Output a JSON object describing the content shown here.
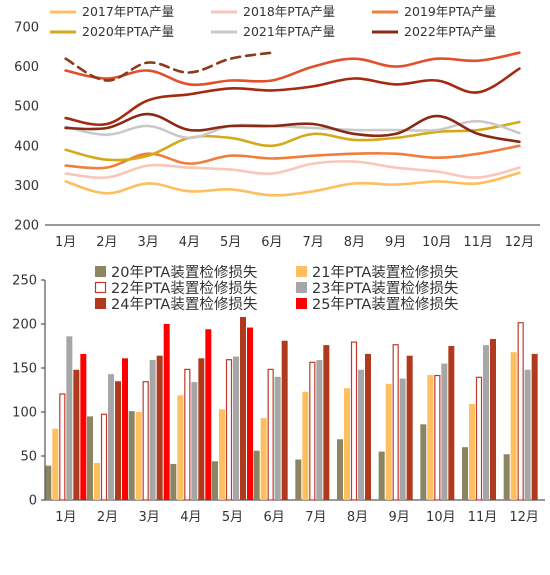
{
  "chart_data": [
    {
      "type": "line",
      "title": "",
      "xlabel": "",
      "ylabel": "",
      "ylim": [
        200,
        700
      ],
      "yticks": [
        200,
        300,
        400,
        500,
        600,
        700
      ],
      "categories": [
        "1月",
        "2月",
        "3月",
        "4月",
        "5月",
        "6月",
        "7月",
        "8月",
        "9月",
        "10月",
        "11月",
        "12月"
      ],
      "grid": false,
      "legend": "top",
      "series": [
        {
          "name": "2017年PTA产量",
          "color": "#FDBF5F",
          "dashed": false,
          "values": [
            310,
            280,
            305,
            285,
            290,
            275,
            285,
            305,
            302,
            310,
            305,
            332
          ]
        },
        {
          "name": "2018年PTA产量",
          "color": "#F9C6BA",
          "dashed": false,
          "values": [
            330,
            320,
            350,
            345,
            340,
            330,
            355,
            360,
            345,
            335,
            320,
            345
          ]
        },
        {
          "name": "2019年PTA产量",
          "color": "#F07E3C",
          "dashed": false,
          "values": [
            350,
            345,
            380,
            355,
            375,
            368,
            375,
            380,
            380,
            370,
            380,
            400
          ]
        },
        {
          "name": "2020年PTA产量",
          "color": "#D4AA1A",
          "dashed": false,
          "values": [
            390,
            365,
            375,
            420,
            420,
            400,
            430,
            415,
            420,
            435,
            440,
            460
          ]
        },
        {
          "name": "2021年PTA产量",
          "color": "#C9C9C9",
          "dashed": false,
          "values": [
            448,
            428,
            450,
            420,
            450,
            450,
            445,
            440,
            440,
            440,
            462,
            432
          ]
        },
        {
          "name": "2022年PTA产量",
          "color": "#8B2A14",
          "dashed": false,
          "values": [
            445,
            445,
            480,
            440,
            450,
            450,
            455,
            430,
            430,
            475,
            430,
            410
          ]
        },
        {
          "name": "",
          "color": "#E2502E",
          "dashed": false,
          "values": [
            590,
            570,
            590,
            555,
            565,
            565,
            600,
            620,
            600,
            620,
            615,
            635
          ]
        },
        {
          "name": "",
          "color": "#A52A10",
          "dashed": false,
          "values": [
            470,
            455,
            515,
            530,
            545,
            540,
            550,
            570,
            555,
            565,
            535,
            595
          ]
        },
        {
          "name": "",
          "color": "#8B3A1A",
          "dashed": true,
          "values": [
            620,
            565,
            610,
            585,
            620,
            635,
            null,
            null,
            null,
            null,
            null,
            null
          ]
        }
      ]
    },
    {
      "type": "bar",
      "title": "",
      "xlabel": "",
      "ylabel": "",
      "ylim": [
        0,
        250
      ],
      "yticks": [
        0,
        50,
        100,
        150,
        200,
        250
      ],
      "categories": [
        "1月",
        "2月",
        "3月",
        "4月",
        "5月",
        "6月",
        "7月",
        "8月",
        "9月",
        "10月",
        "11月",
        "12月"
      ],
      "grid": false,
      "legend": "top-right",
      "series": [
        {
          "name": "20年PTA装置检修损失",
          "color": "#8B8561",
          "hollow": false,
          "values": [
            39,
            95,
            101,
            41,
            44,
            56,
            46,
            69,
            55,
            86,
            60,
            52
          ]
        },
        {
          "name": "21年PTA装置检修损失",
          "color": "#FDBF5F",
          "hollow": false,
          "values": [
            81,
            42,
            100,
            119,
            103,
            93,
            123,
            127,
            132,
            142,
            109,
            168
          ]
        },
        {
          "name": "22年PTA装置检修损失",
          "color": "#C0392B",
          "hollow": true,
          "values": [
            121,
            98,
            135,
            149,
            160,
            149,
            157,
            180,
            177,
            142,
            140,
            202
          ]
        },
        {
          "name": "23年PTA装置检修损失",
          "color": "#A6A6A6",
          "hollow": false,
          "values": [
            186,
            143,
            159,
            134,
            163,
            140,
            159,
            148,
            138,
            155,
            176,
            148
          ]
        },
        {
          "name": "24年PTA装置检修损失",
          "color": "#B03A1E",
          "hollow": false,
          "values": [
            148,
            135,
            164,
            161,
            208,
            181,
            176,
            166,
            164,
            175,
            183,
            166
          ]
        },
        {
          "name": "25年PTA装置检修损失",
          "color": "#FF0000",
          "hollow": false,
          "values": [
            166,
            161,
            200,
            194,
            196,
            null,
            null,
            null,
            null,
            null,
            null,
            null
          ]
        }
      ]
    }
  ]
}
